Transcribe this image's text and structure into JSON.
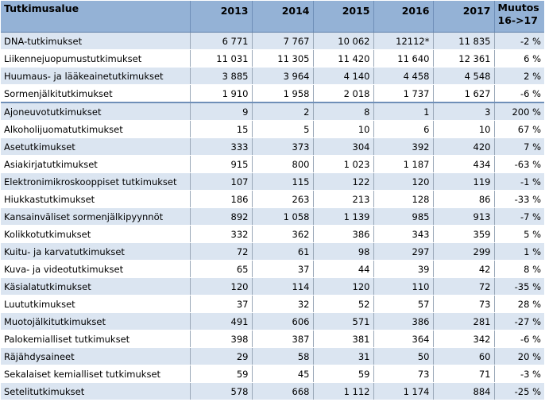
{
  "table": {
    "headers": [
      "Tutkimusalue",
      "2013",
      "2014",
      "2015",
      "2016",
      "2017",
      "Muutos",
      "16->17"
    ],
    "rows": [
      [
        "DNA-tutkimukset",
        "6 771",
        "7 767",
        "10 062",
        "12112*",
        "11 835",
        "-2 %"
      ],
      [
        "Liikennejuopumustutkimukset",
        "11 031",
        "11 305",
        "11 420",
        "11 640",
        "12 361",
        "6 %"
      ],
      [
        "Huumaus- ja lääkeainetutkimukset",
        "3 885",
        "3 964",
        "4 140",
        "4 458",
        "4 548",
        "2 %"
      ],
      [
        "Sormenjälkitutkimukset",
        "1 910",
        "1 958",
        "2 018",
        "1 737",
        "1 627",
        "-6 %"
      ],
      [
        "Ajoneuvotutkimukset",
        "9",
        "2",
        "8",
        "1",
        "3",
        "200 %"
      ],
      [
        "Alkoholijuomatutkimukset",
        "15",
        "5",
        "10",
        "6",
        "10",
        "67 %"
      ],
      [
        "Asetutkimukset",
        "333",
        "373",
        "304",
        "392",
        "420",
        "7 %"
      ],
      [
        "Asiakirjatutkimukset",
        "915",
        "800",
        "1 023",
        "1 187",
        "434",
        "-63 %"
      ],
      [
        "Elektronimikroskooppiset tutkimukset",
        "107",
        "115",
        "122",
        "120",
        "119",
        "-1 %"
      ],
      [
        "Hiukkastutkimukset",
        "186",
        "263",
        "213",
        "128",
        "86",
        "-33 %"
      ],
      [
        "Kansainväliset sormenjälkipyynnöt",
        "892",
        "1 058",
        "1 139",
        "985",
        "913",
        "-7 %"
      ],
      [
        "Kolikkotutkimukset",
        "332",
        "362",
        "386",
        "343",
        "359",
        "5 %"
      ],
      [
        "Kuitu- ja karvatutkimukset",
        "72",
        "61",
        "98",
        "297",
        "299",
        "1 %"
      ],
      [
        "Kuva- ja videotutkimukset",
        "65",
        "37",
        "44",
        "39",
        "42",
        "8 %"
      ],
      [
        "Käsialatutkimukset",
        "120",
        "114",
        "120",
        "110",
        "72",
        "-35 %"
      ],
      [
        "Luututkimukset",
        "37",
        "32",
        "52",
        "57",
        "73",
        "28 %"
      ],
      [
        "Muotojälkitutkimukset",
        "491",
        "606",
        "571",
        "386",
        "281",
        "-27 %"
      ],
      [
        "Palokemialliset tutkimukset",
        "398",
        "387",
        "381",
        "364",
        "342",
        "-6 %"
      ],
      [
        "Räjähdysaineet",
        "29",
        "58",
        "31",
        "50",
        "60",
        "20 %"
      ],
      [
        "Sekalaiset kemialliset tutkimukset",
        "59",
        "45",
        "59",
        "73",
        "71",
        "-3 %"
      ],
      [
        "Setelitutkimukset",
        "578",
        "668",
        "1 112",
        "1 174",
        "884",
        "-25 %"
      ]
    ]
  },
  "colors": {
    "header_bg": "#94b2d6",
    "alt_row_bg": "#dbe5f1",
    "plain_row_bg": "#ffffff"
  }
}
